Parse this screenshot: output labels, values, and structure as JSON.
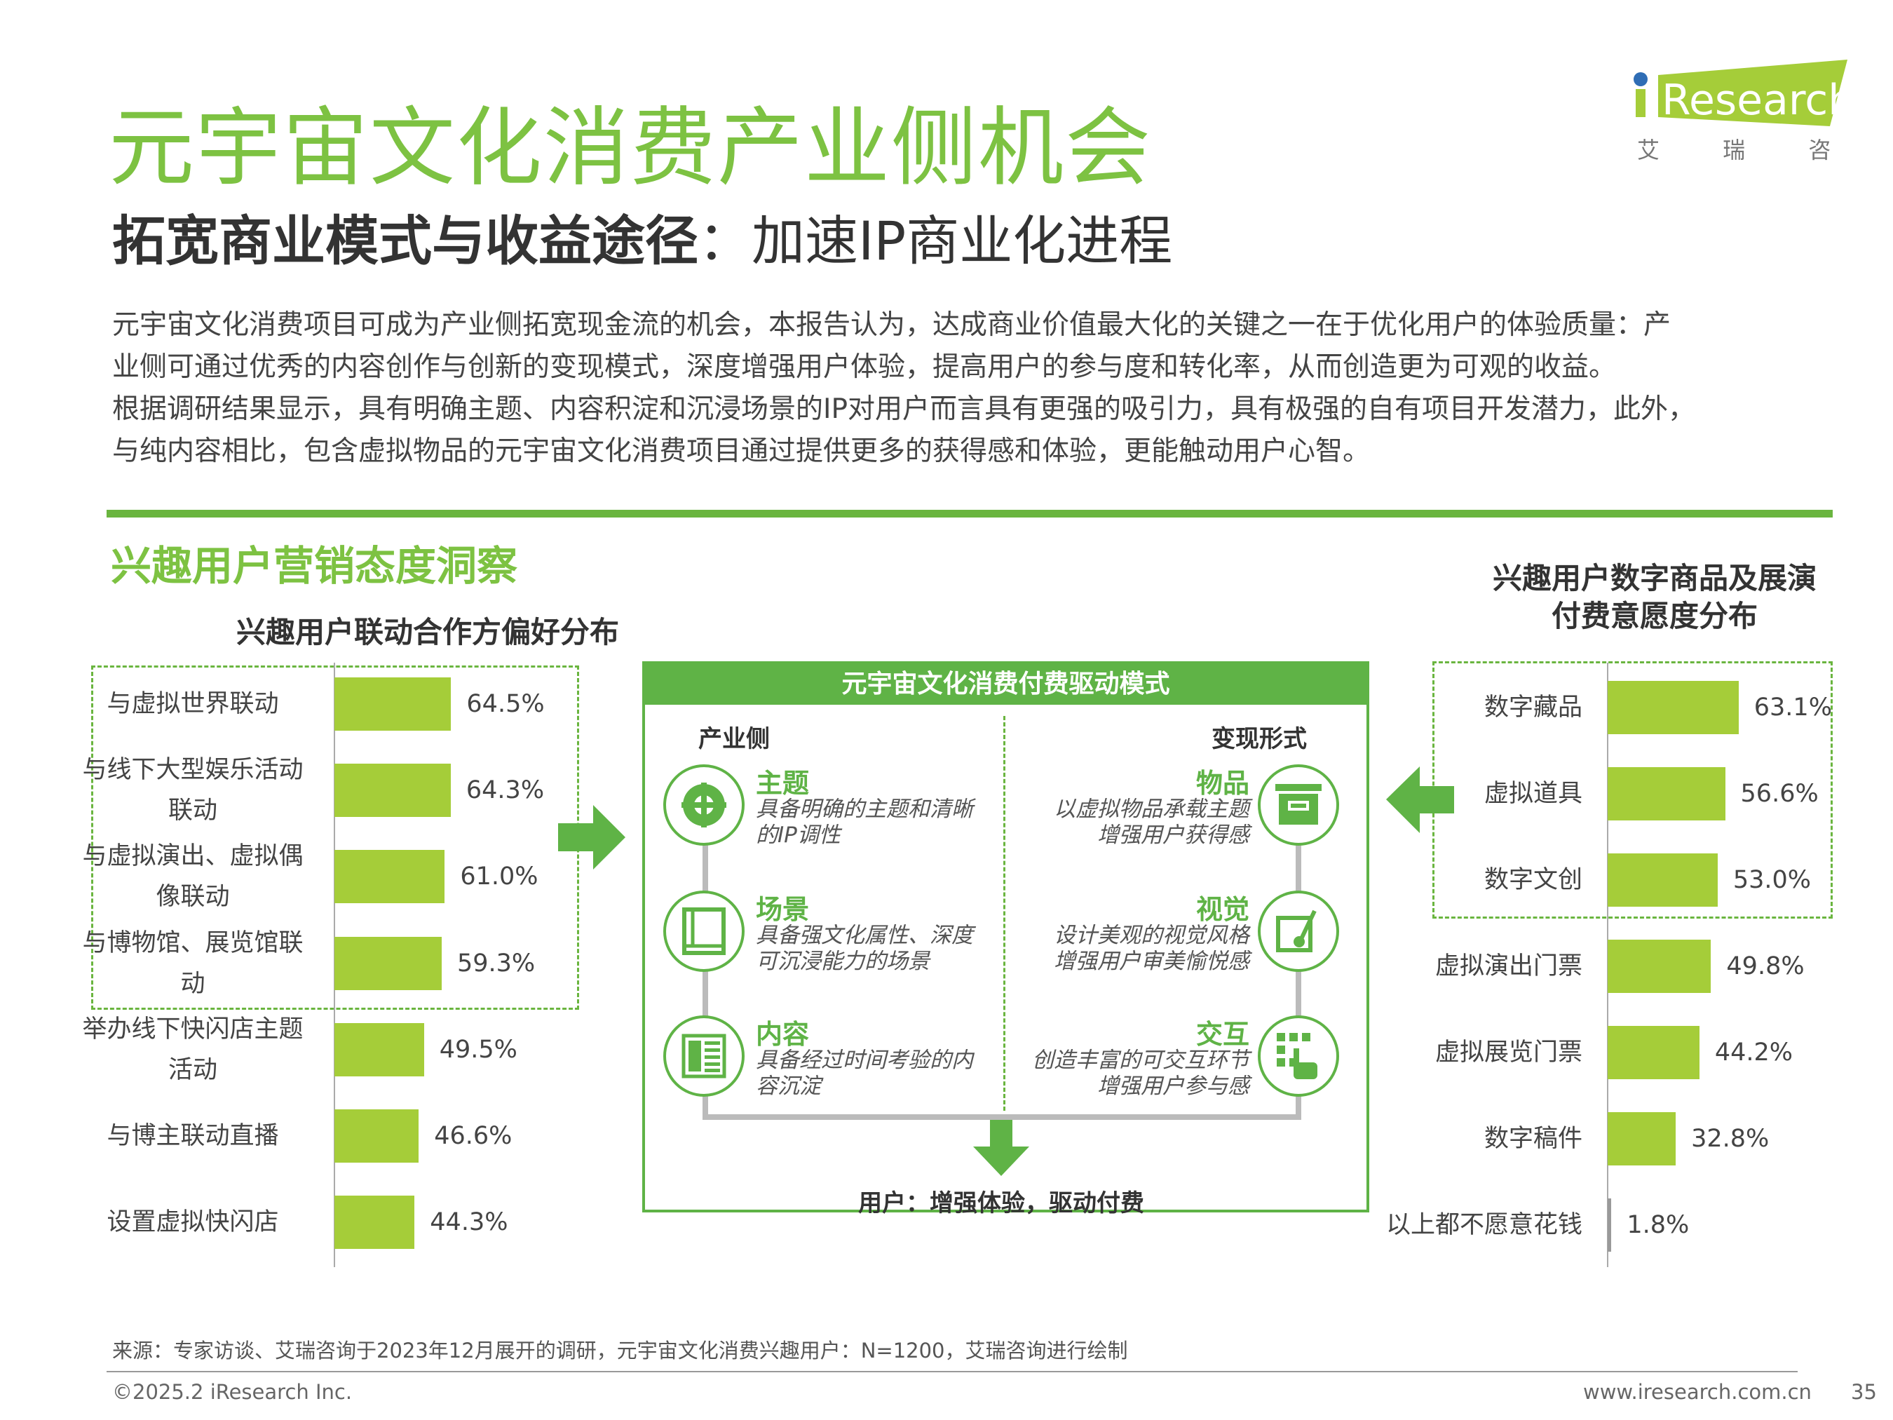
{
  "title": "元宇宙文化消费产业侧机会",
  "subtitle": {
    "bold": "拓宽商业模式与收益途径",
    "rest": "：加速IP商业化进程"
  },
  "paragraph": [
    "元宇宙文化消费项目可成为产业侧拓宽现金流的机会，本报告认为，达成商业价值最大化的关键之一在于优化用户的体验质量：产",
    "业侧可通过优秀的内容创作与创新的变现模式，深度增强用户体验，提高用户的参与度和转化率，从而创造更为可观的收益。",
    "根据调研结果显示，具有明确主题、内容积淀和沉浸场景的IP对用户而言具有更强的吸引力，具有极强的自有项目开发潜力，此外，",
    "与纯内容相比，包含虚拟物品的元宇宙文化消费项目通过提供更多的获得感和体验，更能触动用户心智。"
  ],
  "logo": {
    "brand": "iResearch",
    "cn": "艾 瑞 咨 询"
  },
  "section_title": "兴趣用户营销态度洞察",
  "chart_data": [
    {
      "type": "bar",
      "orientation": "horizontal",
      "title": "兴趣用户联动合作方偏好分布",
      "categories": [
        "与虚拟世界联动",
        "与线下大型娱乐活动联动",
        "与虚拟演出、虚拟偶像联动",
        "与博物馆、展览馆联动",
        "举办线下快闪店主题活动",
        "与博主联动直播",
        "设置虚拟快闪店"
      ],
      "label_lines": [
        [
          "与虚拟世界联动"
        ],
        [
          "与线下大型娱乐活动",
          "联动"
        ],
        [
          "与虚拟演出、虚拟偶",
          "像联动"
        ],
        [
          "与博物馆、展览馆联",
          "动"
        ],
        [
          "举办线下快闪店主题",
          "活动"
        ],
        [
          "与博主联动直播"
        ],
        [
          "设置虚拟快闪店"
        ]
      ],
      "values": [
        64.5,
        64.3,
        61.0,
        59.3,
        49.5,
        46.6,
        44.3
      ],
      "labels": [
        "64.5%",
        "64.3%",
        "61.0%",
        "59.3%",
        "49.5%",
        "46.6%",
        "44.3%"
      ],
      "highlighted": 4
    },
    {
      "type": "bar",
      "orientation": "horizontal",
      "title": "兴趣用户数字商品及展演付费意愿度分布",
      "title_lines": [
        "兴趣用户数字商品及展演",
        "付费意愿度分布"
      ],
      "categories": [
        "数字藏品",
        "虚拟道具",
        "数字文创",
        "虚拟演出门票",
        "虚拟展览门票",
        "数字稿件",
        "以上都不愿意花钱"
      ],
      "values": [
        63.1,
        56.6,
        53.0,
        49.8,
        44.2,
        32.8,
        1.8
      ],
      "labels": [
        "63.1%",
        "56.6%",
        "53.0%",
        "49.8%",
        "44.2%",
        "32.8%",
        "1.8%"
      ],
      "highlighted": 3
    }
  ],
  "model": {
    "title": "元宇宙文化消费付费驱动模式",
    "left_head": "产业侧",
    "right_head": "变现形式",
    "left": [
      {
        "h": "主题",
        "d": [
          "具备明确的主题和清晰",
          "的IP调性"
        ]
      },
      {
        "h": "场景",
        "d": [
          "具备强文化属性、深度",
          "可沉浸能力的场景"
        ]
      },
      {
        "h": "内容",
        "d": [
          "具备经过时间考验的内",
          "容沉淀"
        ]
      }
    ],
    "right": [
      {
        "h": "物品",
        "d": [
          "以虚拟物品承载主题",
          "增强用户获得感"
        ]
      },
      {
        "h": "视觉",
        "d": [
          "设计美观的视觉风格",
          "增强用户审美愉悦感"
        ]
      },
      {
        "h": "交互",
        "d": [
          "创造丰富的可交互环节",
          "增强用户参与感"
        ]
      }
    ],
    "bottom": "用户：增强体验，驱动付费"
  },
  "colors": {
    "title": "#7dc242",
    "bar": "#a5cd39",
    "accent": "#5fb346"
  },
  "footer": {
    "source": "来源：专家访谈、艾瑞咨询于2023年12月展开的调研，元宇宙文化消费兴趣用户：N=1200，艾瑞咨询进行绘制",
    "copyright": "©2025.2 iResearch Inc.",
    "url": "www.iresearch.com.cn",
    "page": "35"
  }
}
